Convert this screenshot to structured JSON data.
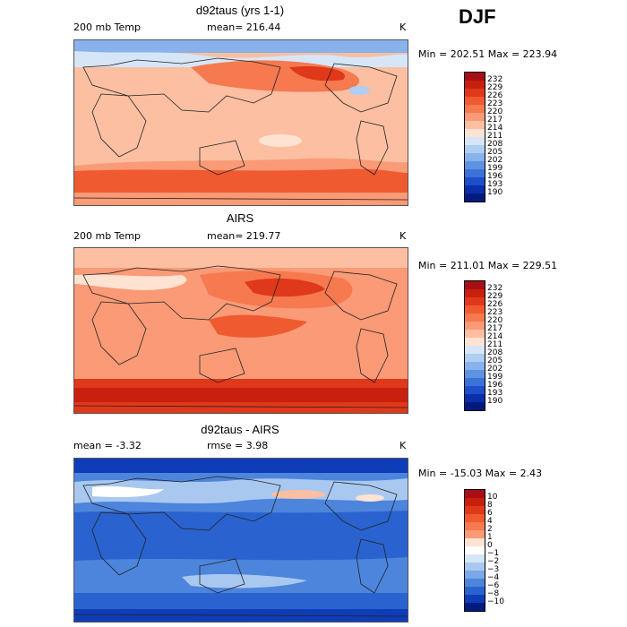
{
  "season": "DJF",
  "panels": [
    {
      "title": "d92taus (yrs 1-1)",
      "left_label": "200 mb Temp",
      "center_label": "mean= 216.44",
      "unit": "K",
      "minmax": "Min = 202.51 Max = 223.94",
      "colorbar": {
        "labels": [
          "232",
          "229",
          "226",
          "223",
          "220",
          "217",
          "214",
          "211",
          "208",
          "205",
          "202",
          "199",
          "196",
          "193",
          "190"
        ],
        "colors": [
          "#a50f15",
          "#c8200e",
          "#e0381a",
          "#ef5a30",
          "#f6794f",
          "#fa9a76",
          "#fcbfa2",
          "#fee3d2",
          "#d6e6f7",
          "#b0cdf2",
          "#87b2ec",
          "#5e93e2",
          "#3b72d8",
          "#1c4fc9",
          "#0a2fa8",
          "#001a80"
        ]
      },
      "chart_data": {
        "type": "heatmap",
        "description_values": {
          "min": 202.51,
          "max": 223.94,
          "mean": 216.44
        }
      }
    },
    {
      "title": "AIRS",
      "left_label": "200 mb Temp",
      "center_label": "mean= 219.77",
      "unit": "K",
      "minmax": "Min = 211.01 Max = 229.51",
      "colorbar": {
        "labels": [
          "232",
          "229",
          "226",
          "223",
          "220",
          "217",
          "214",
          "211",
          "208",
          "205",
          "202",
          "199",
          "196",
          "193",
          "190"
        ],
        "colors": [
          "#a50f15",
          "#c8200e",
          "#e0381a",
          "#ef5a30",
          "#f6794f",
          "#fa9a76",
          "#fcbfa2",
          "#fee3d2",
          "#d6e6f7",
          "#b0cdf2",
          "#87b2ec",
          "#5e93e2",
          "#3b72d8",
          "#1c4fc9",
          "#0a2fa8",
          "#001a80"
        ]
      },
      "chart_data": {
        "type": "heatmap",
        "description_values": {
          "min": 211.01,
          "max": 229.51,
          "mean": 219.77
        }
      }
    },
    {
      "title": "d92taus - AIRS",
      "left_label": "mean =   -3.32",
      "center_label": "rmse =    3.98",
      "unit": "K",
      "minmax": "Min = -15.03 Max =    2.43",
      "colorbar": {
        "labels": [
          "10",
          "8",
          "6",
          "4",
          "2",
          "1",
          "0",
          "-1",
          "-2",
          "-3",
          "-4",
          "-6",
          "-8",
          "-10"
        ],
        "colors": [
          "#a50f15",
          "#c8200e",
          "#e0381a",
          "#ef5a30",
          "#f6794f",
          "#fa9a76",
          "#fee3d2",
          "#ffffff",
          "#d6e6f7",
          "#a9c8f0",
          "#7aa8e8",
          "#4d85dc",
          "#2a63cf",
          "#0f3db8",
          "#001a80"
        ]
      },
      "chart_data": {
        "type": "heatmap",
        "description_values": {
          "min": -15.03,
          "max": 2.43,
          "mean": -3.32,
          "rmse": 3.98
        }
      }
    }
  ],
  "chart_data": [
    {
      "type": "heatmap",
      "title": "d92taus (yrs 1-1)",
      "variable": "200 mb Temp",
      "unit": "K",
      "mean": 216.44,
      "min": 202.51,
      "max": 223.94,
      "levels": [
        190,
        193,
        196,
        199,
        202,
        205,
        208,
        211,
        214,
        217,
        220,
        223,
        226,
        229,
        232
      ]
    },
    {
      "type": "heatmap",
      "title": "AIRS",
      "variable": "200 mb Temp",
      "unit": "K",
      "mean": 219.77,
      "min": 211.01,
      "max": 229.51,
      "levels": [
        190,
        193,
        196,
        199,
        202,
        205,
        208,
        211,
        214,
        217,
        220,
        223,
        226,
        229,
        232
      ]
    },
    {
      "type": "heatmap",
      "title": "d92taus - AIRS",
      "unit": "K",
      "mean": -3.32,
      "rmse": 3.98,
      "min": -15.03,
      "max": 2.43,
      "levels": [
        -10,
        -8,
        -6,
        -4,
        -3,
        -2,
        -1,
        0,
        1,
        2,
        4,
        6,
        8,
        10
      ]
    }
  ]
}
